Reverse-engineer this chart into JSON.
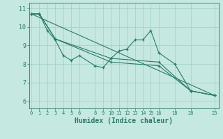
{
  "background_color": "#c5e8e0",
  "grid_color": "#9fcfc7",
  "line_color": "#2a7a6a",
  "xlabel": "Humidex (Indice chaleur)",
  "xlabel_fontsize": 7,
  "xlim": [
    -0.3,
    23.5
  ],
  "ylim": [
    5.6,
    11.3
  ],
  "yticks": [
    6,
    7,
    8,
    9,
    10,
    11
  ],
  "xticks": [
    0,
    1,
    2,
    3,
    4,
    5,
    6,
    8,
    9,
    10,
    11,
    12,
    13,
    14,
    15,
    16,
    18,
    20,
    23
  ],
  "series": [
    {
      "x": [
        0,
        1,
        2,
        3,
        4,
        5,
        6,
        8,
        9,
        10,
        11,
        12,
        13,
        14,
        15,
        16,
        18,
        20,
        23
      ],
      "y": [
        10.7,
        10.7,
        9.8,
        9.3,
        8.45,
        8.2,
        8.45,
        7.9,
        7.8,
        8.3,
        8.7,
        8.8,
        9.3,
        9.3,
        9.8,
        8.6,
        8.0,
        6.55,
        6.3
      ]
    },
    {
      "x": [
        0,
        1,
        3,
        10,
        16,
        20,
        23
      ],
      "y": [
        10.7,
        10.7,
        9.35,
        8.3,
        8.1,
        6.55,
        6.3
      ]
    },
    {
      "x": [
        0,
        1,
        3,
        10,
        16,
        20,
        23
      ],
      "y": [
        10.7,
        10.7,
        9.35,
        8.1,
        7.9,
        6.55,
        6.3
      ]
    },
    {
      "x": [
        0,
        23
      ],
      "y": [
        10.7,
        6.3
      ]
    }
  ]
}
